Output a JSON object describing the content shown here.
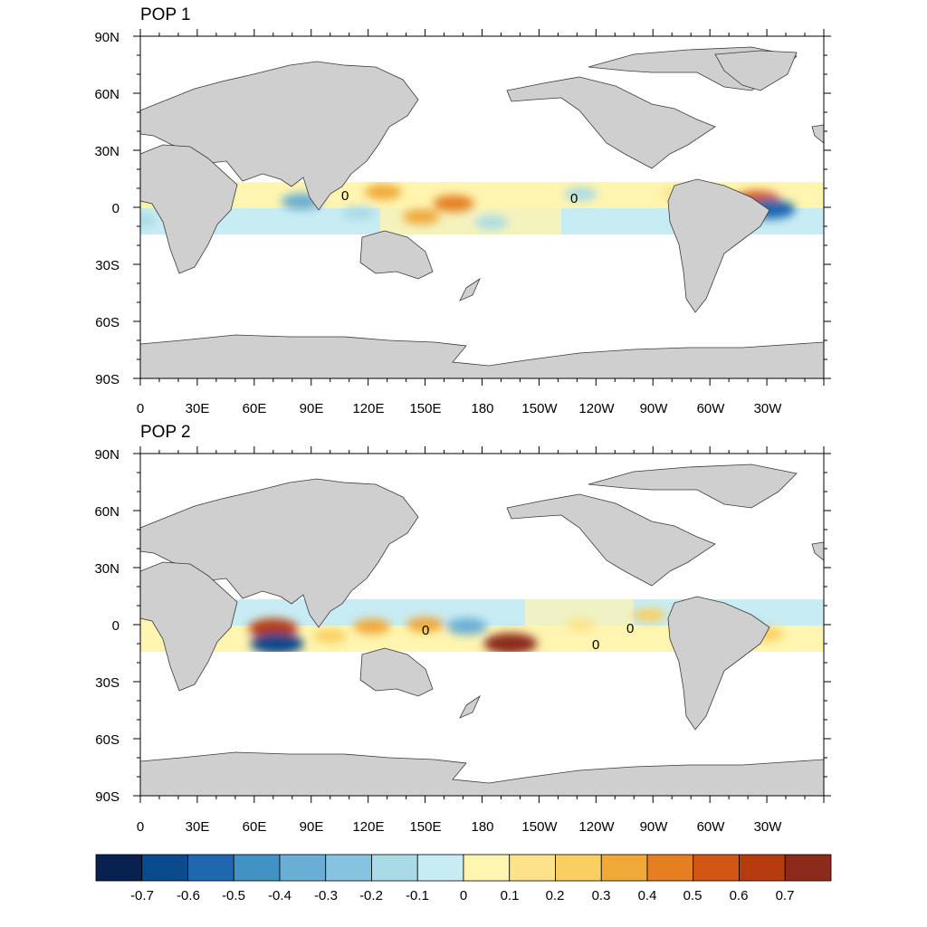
{
  "panels": [
    {
      "title": "POP 1",
      "y_ticks": [
        "90N",
        "60N",
        "30N",
        "0",
        "30S",
        "60S",
        "90S"
      ],
      "x_ticks": [
        "0",
        "30E",
        "60E",
        "90E",
        "120E",
        "150E",
        "180",
        "150W",
        "120W",
        "90W",
        "60W",
        "30W"
      ],
      "contour_labels": [
        "0",
        "0"
      ],
      "anomalies": [
        {
          "lon": 85,
          "lat": 3,
          "value": -0.4
        },
        {
          "lon": 115,
          "lat": -3,
          "value": -0.2
        },
        {
          "lon": 128,
          "lat": 8,
          "value": 0.3
        },
        {
          "lon": 148,
          "lat": -5,
          "value": 0.3
        },
        {
          "lon": 165,
          "lat": 2,
          "value": 0.4
        },
        {
          "lon": 185,
          "lat": -8,
          "value": -0.2
        },
        {
          "lon": 232,
          "lat": 7,
          "value": -0.2
        },
        {
          "lon": 282,
          "lat": 7,
          "value": 0.1
        },
        {
          "lon": 325,
          "lat": 4,
          "value": 0.5
        },
        {
          "lon": 332,
          "lat": -1,
          "value": -0.6
        },
        {
          "lon": 15,
          "lat": 3,
          "value": 0.2
        },
        {
          "lon": 0,
          "lat": -7,
          "value": -0.2
        }
      ]
    },
    {
      "title": "POP 2",
      "y_ticks": [
        "90N",
        "60N",
        "30N",
        "0",
        "30S",
        "60S",
        "90S"
      ],
      "x_ticks": [
        "0",
        "30E",
        "60E",
        "90E",
        "120E",
        "150E",
        "180",
        "150W",
        "120W",
        "90W",
        "60W",
        "30W"
      ],
      "contour_labels": [
        "0",
        "0",
        "0"
      ],
      "anomalies": [
        {
          "lon": 70,
          "lat": -2,
          "value": 0.6
        },
        {
          "lon": 72,
          "lat": -10,
          "value": -0.7
        },
        {
          "lon": 100,
          "lat": -6,
          "value": 0.2
        },
        {
          "lon": 122,
          "lat": -1,
          "value": 0.3
        },
        {
          "lon": 150,
          "lat": 0,
          "value": 0.3
        },
        {
          "lon": 172,
          "lat": -1,
          "value": -0.4
        },
        {
          "lon": 195,
          "lat": -10,
          "value": 0.7
        },
        {
          "lon": 232,
          "lat": 0,
          "value": 0.1
        },
        {
          "lon": 268,
          "lat": 5,
          "value": 0.2
        },
        {
          "lon": 320,
          "lat": 0,
          "value": -0.2
        },
        {
          "lon": 330,
          "lat": -5,
          "value": 0.2
        }
      ]
    }
  ],
  "colorbar": {
    "labels": [
      "-0.7",
      "-0.6",
      "-0.5",
      "-0.4",
      "-0.3",
      "-0.2",
      "-0.1",
      "0",
      "0.1",
      "0.2",
      "0.3",
      "0.4",
      "0.5",
      "0.6",
      "0.7"
    ],
    "colors": [
      "#08214f",
      "#0b4a8c",
      "#1f68b0",
      "#4292c6",
      "#6aaed6",
      "#87c3e0",
      "#a9dbe6",
      "#c8ecf4",
      "#fff5b0",
      "#fee28a",
      "#f8cf60",
      "#f0a838",
      "#e57f22",
      "#d25714",
      "#b63b0e",
      "#8c2a1b"
    ]
  }
}
